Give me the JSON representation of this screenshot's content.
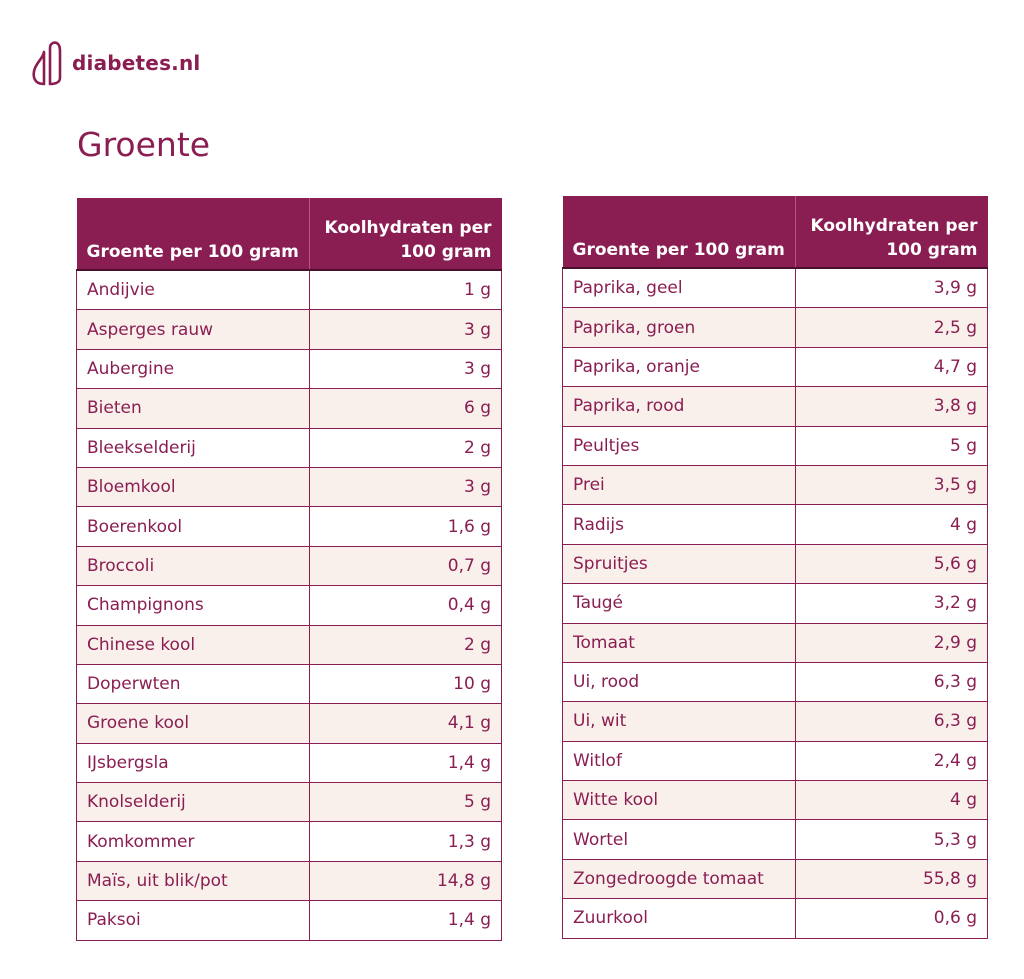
{
  "brand": {
    "name": "diabetes.nl"
  },
  "page": {
    "title": "Groente"
  },
  "headers": {
    "name": "Groente per 100 gram",
    "carbs": "Koolhydraten per 100 gram"
  },
  "colors": {
    "primary": "#8a1e52",
    "stripe": "#f9f0ec",
    "text_on_primary": "#ffffff"
  },
  "left_table": [
    {
      "name": "Andijvie",
      "value": "1 g"
    },
    {
      "name": "Asperges rauw",
      "value": "3 g"
    },
    {
      "name": "Aubergine",
      "value": "3 g"
    },
    {
      "name": "Bieten",
      "value": "6 g"
    },
    {
      "name": "Bleekselderij",
      "value": "2 g"
    },
    {
      "name": "Bloemkool",
      "value": "3 g"
    },
    {
      "name": "Boerenkool",
      "value": "1,6 g"
    },
    {
      "name": "Broccoli",
      "value": "0,7 g"
    },
    {
      "name": "Champignons",
      "value": "0,4 g"
    },
    {
      "name": "Chinese kool",
      "value": "2 g"
    },
    {
      "name": "Doperwten",
      "value": "10 g"
    },
    {
      "name": "Groene kool",
      "value": "4,1 g"
    },
    {
      "name": "IJsbergsla",
      "value": "1,4 g"
    },
    {
      "name": "Knolselderij",
      "value": "5 g"
    },
    {
      "name": "Komkommer",
      "value": "1,3 g"
    },
    {
      "name": "Maïs, uit blik/pot",
      "value": "14,8 g"
    },
    {
      "name": "Paksoi",
      "value": "1,4 g"
    }
  ],
  "right_table": [
    {
      "name": "Paprika, geel",
      "value": "3,9 g"
    },
    {
      "name": "Paprika, groen",
      "value": "2,5 g"
    },
    {
      "name": "Paprika, oranje",
      "value": "4,7 g"
    },
    {
      "name": "Paprika, rood",
      "value": "3,8 g"
    },
    {
      "name": "Peultjes",
      "value": "5 g"
    },
    {
      "name": "Prei",
      "value": "3,5 g"
    },
    {
      "name": "Radijs",
      "value": "4 g"
    },
    {
      "name": "Spruitjes",
      "value": "5,6 g"
    },
    {
      "name": "Taugé",
      "value": "3,2 g"
    },
    {
      "name": "Tomaat",
      "value": "2,9 g"
    },
    {
      "name": "Ui, rood",
      "value": "6,3 g"
    },
    {
      "name": "Ui, wit",
      "value": "6,3 g"
    },
    {
      "name": "Witlof",
      "value": "2,4 g"
    },
    {
      "name": "Witte kool",
      "value": "4 g"
    },
    {
      "name": "Wortel",
      "value": "5,3 g"
    },
    {
      "name": "Zongedroogde tomaat",
      "value": "55,8 g"
    },
    {
      "name": "Zuurkool",
      "value": "0,6 g"
    }
  ]
}
